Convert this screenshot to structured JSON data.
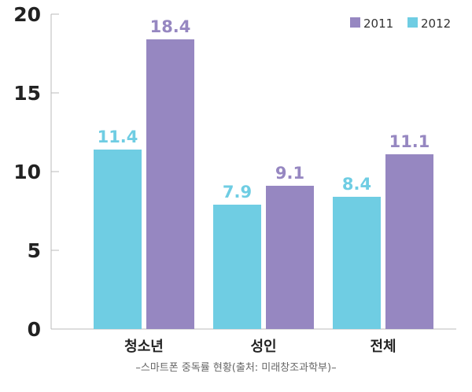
{
  "chart_data": {
    "type": "bar",
    "categories": [
      "청소년",
      "성인",
      "전체"
    ],
    "series": [
      {
        "name": "2011",
        "values": [
          18.4,
          9.1,
          11.1
        ],
        "color": "#9687c1"
      },
      {
        "name": "2012",
        "values": [
          11.4,
          7.9,
          8.4
        ],
        "color": "#6fcde3"
      }
    ],
    "draw_order": [
      "2012",
      "2011"
    ],
    "ylim": [
      0,
      20
    ],
    "yticks": [
      "0",
      "5",
      "10",
      "15",
      "20"
    ],
    "data_labels": {
      "2012": [
        "11.4",
        "7.9",
        "8.4"
      ],
      "2011": [
        "18.4",
        "9.1",
        "11.1"
      ]
    },
    "legend_position": "top-right",
    "grid": false
  },
  "caption": "–스마트폰 중독률 현황(출처: 미래창조과학부)–"
}
